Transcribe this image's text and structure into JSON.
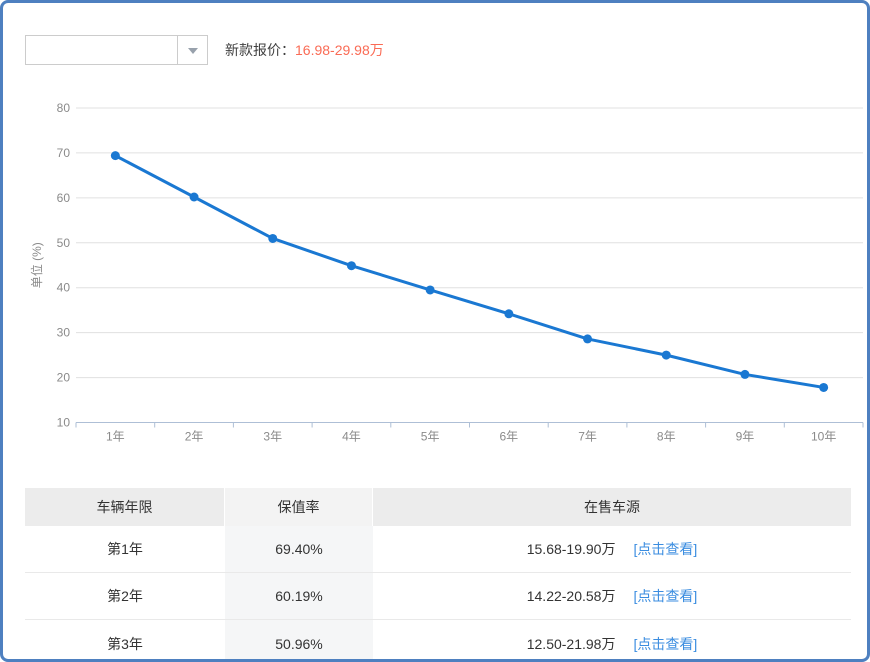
{
  "page": {
    "border_color": "#4e80c0"
  },
  "toolbar": {
    "dropdown_value": "",
    "price_label": "新款报价：",
    "price_value": "16.98-29.98万",
    "price_color": "#fa6b55"
  },
  "chart_data": {
    "type": "line",
    "title": "",
    "categories": [
      "1年",
      "2年",
      "3年",
      "4年",
      "5年",
      "6年",
      "7年",
      "8年",
      "9年",
      "10年"
    ],
    "values": [
      69.4,
      60.19,
      50.96,
      44.9,
      39.5,
      34.2,
      28.6,
      25.0,
      20.7,
      17.8
    ],
    "xlabel": "",
    "ylabel": "单位 (%)",
    "ylim": [
      10,
      80
    ],
    "ytick_step": 10,
    "grid": true,
    "legend": "none",
    "line_color": "#1a78d2",
    "grid_color": "#e0e0e0",
    "axis_color": "#aebfd6"
  },
  "table": {
    "headers": [
      "车辆年限",
      "保值率",
      "在售车源"
    ],
    "rows": [
      {
        "year": "第1年",
        "rate": "69.40%",
        "price": "15.68-19.90万",
        "link": "[点击查看]"
      },
      {
        "year": "第2年",
        "rate": "60.19%",
        "price": "14.22-20.58万",
        "link": "[点击查看]"
      },
      {
        "year": "第3年",
        "rate": "50.96%",
        "price": "12.50-21.98万",
        "link": "[点击查看]"
      }
    ]
  }
}
